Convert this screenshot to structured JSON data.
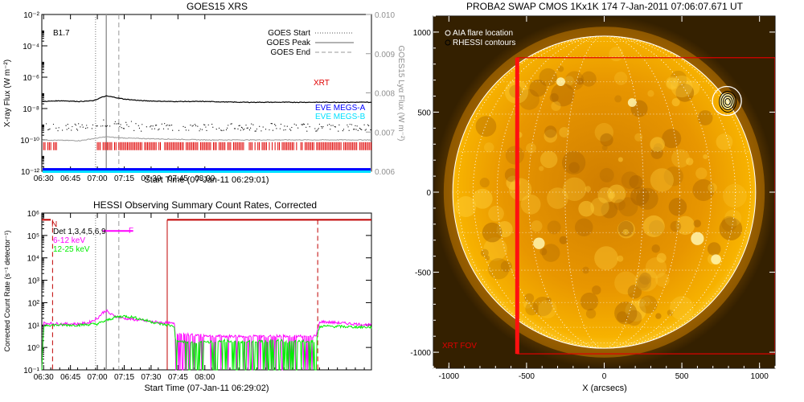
{
  "colors": {
    "xrt": "#e00000",
    "megs_a": "#0000ff",
    "megs_b": "#00e0ff",
    "lya": "#a0a0a0",
    "magenta": "#ff00ff",
    "green": "#00ee00",
    "dark_red": "#c00000",
    "solar": "#f2a200"
  },
  "chart_data": [
    {
      "id": "goes",
      "type": "line",
      "title": "GOES15 XRS",
      "xlabel": "Start Time (07-Jan-11 06:29:01)",
      "ylabel": "X-ray Flux (W m⁻²)",
      "y2label": "GOES15 Lyα Flux (W m⁻²)",
      "xlim_min": [
        389,
        573
      ],
      "x_ticks_min": [
        390,
        405,
        420,
        435,
        450,
        465,
        480
      ],
      "x_tick_labels": [
        "06:30",
        "06:45",
        "07:00",
        "07:15",
        "07:30",
        "07:45",
        "08:00"
      ],
      "ylim_exp": [
        -12,
        -2
      ],
      "y_ticks_exp": [
        -12,
        -10,
        -8,
        -6,
        -4,
        -2
      ],
      "y_tick_labels": [
        "10⁻¹²",
        "10⁻¹⁰",
        "10⁻⁸",
        "10⁻⁶",
        "10⁻⁴",
        "10⁻²"
      ],
      "y2lim": [
        0.006,
        0.01
      ],
      "y2_ticks": [
        "0.006",
        "0.007",
        "0.008",
        "0.009",
        "0.010"
      ],
      "class_label": "B1.7",
      "legend": [
        "GOES Start",
        "GOES Peak",
        "GOES End"
      ],
      "series_labels": [
        "XRT",
        "EVE MEGS-A",
        "EVE MEGS-B"
      ],
      "markers_min": {
        "start": 419,
        "peak": 425,
        "end": 432
      },
      "series": {
        "goes_long_exp": {
          "t": [
            389,
            400,
            410,
            418,
            422,
            425,
            428,
            435,
            445,
            460,
            480,
            500,
            520,
            540,
            560,
            573
          ],
          "v": [
            -7.55,
            -7.5,
            -7.55,
            -7.5,
            -7.3,
            -7.2,
            -7.25,
            -7.4,
            -7.5,
            -7.55,
            -7.55,
            -7.6,
            -7.6,
            -7.6,
            -7.6,
            -7.6
          ]
        },
        "goes_short_exp": {
          "t": [
            389,
            410,
            419,
            425,
            430,
            440,
            460,
            480,
            500,
            540,
            573
          ],
          "v": [
            -10.0,
            -10.05,
            -9.9,
            -9.8,
            -9.85,
            -9.9,
            -9.95,
            -10.0,
            -10.0,
            -10.0,
            -10.0
          ]
        },
        "xrt_bars_min": [
          [
            390,
            398
          ],
          [
            420,
            573
          ]
        ],
        "xrt_level_exp": -10.4,
        "megs_a_exp": -11.85,
        "megs_b_exp": -12.0
      }
    },
    {
      "id": "hessi",
      "type": "line",
      "title": "HESSI Observing Summary Count Rates, Corrected",
      "xlabel": "Start Time (07-Jan-11 06:29:02)",
      "ylabel": "Corrected Count Rate (s⁻¹ detector⁻¹)",
      "xlim_min": [
        389,
        573
      ],
      "x_ticks_min": [
        390,
        405,
        420,
        435,
        450,
        465,
        480
      ],
      "x_tick_labels": [
        "06:30",
        "06:45",
        "07:00",
        "07:15",
        "07:30",
        "07:45",
        "08:00"
      ],
      "ylim_exp": [
        -1,
        6
      ],
      "y_ticks_exp": [
        -1,
        0,
        1,
        2,
        3,
        4,
        5,
        6
      ],
      "y_tick_labels": [
        "10⁻¹",
        "10⁰",
        "10¹",
        "10²",
        "10³",
        "10⁴",
        "10⁵",
        "10⁶"
      ],
      "legend": [
        "Det 1,3,4,5,6,9",
        "6-12 keV",
        "12-25 keV"
      ],
      "flags": [
        "N",
        "F"
      ],
      "markers_min": {
        "start": 419,
        "peak": 425,
        "end": 432
      },
      "night_min": [
        [
          389,
          394
        ],
        [
          459,
          573
        ]
      ],
      "night_level_exp": 5.7,
      "flare_min": [
        423,
        440
      ],
      "flare_level_exp": 5.2,
      "red_dashes_min": [
        395,
        543
      ],
      "series": [
        {
          "name": "6-12 keV",
          "t": [
            389,
            390,
            392,
            400,
            410,
            415,
            420,
            423,
            425,
            427,
            430,
            435,
            440,
            445,
            450,
            455,
            459,
            463,
            463.5,
            475,
            490,
            500,
            520,
            530,
            540,
            542,
            544,
            545,
            573
          ],
          "v": [
            -1,
            1.1,
            1.08,
            1.05,
            1.05,
            1.1,
            1.3,
            1.55,
            1.65,
            1.5,
            1.4,
            1.3,
            1.25,
            1.2,
            1.15,
            1.12,
            1.1,
            1.05,
            0.6,
            0.55,
            0.5,
            0.5,
            0.5,
            0.5,
            0.5,
            0.5,
            1.1,
            1.15,
            1.0
          ]
        },
        {
          "name": "12-25 keV",
          "t": [
            389,
            390,
            392,
            400,
            410,
            420,
            425,
            430,
            435,
            440,
            445,
            450,
            455,
            459,
            463,
            463.5,
            475,
            490,
            500,
            520,
            530,
            540,
            542,
            544,
            545,
            573
          ],
          "v": [
            -1,
            0.95,
            1.0,
            1.0,
            1.0,
            1.05,
            1.2,
            1.35,
            1.4,
            1.35,
            1.25,
            1.15,
            1.05,
            1.0,
            0.95,
            0.3,
            0.2,
            0.3,
            0.25,
            0.3,
            0.25,
            0.3,
            0.3,
            0.9,
            0.95,
            0.9
          ]
        }
      ]
    },
    {
      "id": "swap",
      "type": "image",
      "title": "PROBA2 SWAP CMOS 1Kx1K 174  7-Jan-2011 07:06:07.671 UT",
      "xlabel": "X (arcsecs)",
      "xlim": [
        -1100,
        1100
      ],
      "ylim": [
        -1100,
        1100
      ],
      "x_ticks": [
        -1000,
        -500,
        0,
        500,
        1000
      ],
      "y_ticks": [
        -1000,
        -500,
        0,
        500,
        1000
      ],
      "legend": [
        "AIA flare location",
        "RHESSI contours"
      ],
      "xrt_fov_label": "XRT FOV",
      "xrt_fov": {
        "x": [
          -560,
          1100
        ],
        "y": [
          -1010,
          840
        ]
      },
      "solar_radius": 975,
      "flare": {
        "x": 790,
        "y": 570
      }
    }
  ]
}
